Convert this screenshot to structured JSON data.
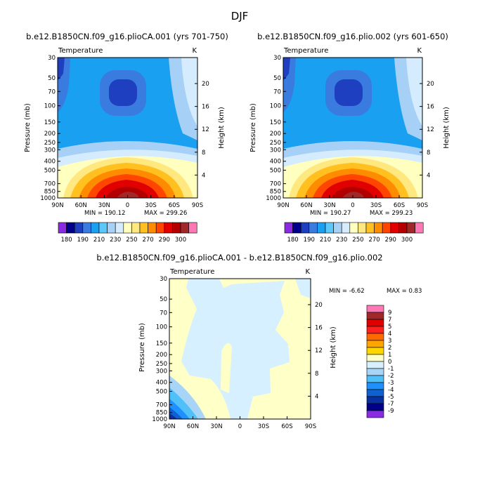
{
  "title": "DJF",
  "chart_data": [
    {
      "type": "heatmap",
      "title": "b.e12.B1850CN.f09_g16.plioCA.001 (yrs 701-750)",
      "left_label": "Temperature",
      "right_label": "K",
      "xlabel": "",
      "ylabel": "Pressure (mb)",
      "ylabel_right": "Height (km)",
      "x_ticks": [
        "90N",
        "60N",
        "30N",
        "0",
        "30S",
        "60S",
        "90S"
      ],
      "y_ticks": [
        "30",
        "50",
        "70",
        "100",
        "150",
        "200",
        "250",
        "300",
        "400",
        "500",
        "700",
        "850",
        "1000"
      ],
      "right_ticks": [
        "20",
        "16",
        "12",
        "8",
        "4"
      ],
      "min_label": "MIN = 190.12",
      "max_label": "MAX = 299.26",
      "colorbar_labels": [
        "180",
        "190",
        "210",
        "230",
        "250",
        "270",
        "290",
        "300"
      ]
    },
    {
      "type": "heatmap",
      "title": "b.e12.B1850CN.f09_g16.plio.002 (yrs 601-650)",
      "left_label": "Temperature",
      "right_label": "K",
      "xlabel": "",
      "ylabel": "Pressure (mb)",
      "ylabel_right": "Height (km)",
      "x_ticks": [
        "90N",
        "60N",
        "30N",
        "0",
        "30S",
        "60S",
        "90S"
      ],
      "y_ticks": [
        "30",
        "50",
        "70",
        "100",
        "150",
        "200",
        "250",
        "300",
        "400",
        "500",
        "700",
        "850",
        "1000"
      ],
      "right_ticks": [
        "20",
        "16",
        "12",
        "8",
        "4"
      ],
      "min_label": "MIN = 190.27",
      "max_label": "MAX = 299.23",
      "colorbar_labels": [
        "180",
        "190",
        "210",
        "230",
        "250",
        "270",
        "290",
        "300"
      ]
    },
    {
      "type": "heatmap",
      "title": "b.e12.B1850CN.f09_g16.plioCA.001 - b.e12.B1850CN.f09_g16.plio.002",
      "left_label": "Temperature",
      "right_label": "K",
      "xlabel": "",
      "ylabel": "Pressure (mb)",
      "ylabel_right": "Height (km)",
      "x_ticks": [
        "90N",
        "60N",
        "30N",
        "0",
        "30S",
        "60S",
        "90S"
      ],
      "y_ticks": [
        "30",
        "50",
        "70",
        "100",
        "150",
        "200",
        "250",
        "300",
        "400",
        "500",
        "700",
        "850",
        "1000"
      ],
      "right_ticks": [
        "20",
        "16",
        "12",
        "8",
        "4"
      ],
      "min_label": "MIN = -6.62",
      "max_label": "MAX = 0.83",
      "colorbar_labels": [
        "9",
        "7",
        "5",
        "4",
        "3",
        "2",
        "1",
        "0",
        "-1",
        "-2",
        "-3",
        "-4",
        "-5",
        "-7",
        "-9"
      ]
    }
  ],
  "colors": {
    "abs_palette": [
      "#8a2be2",
      "#00008b",
      "#1e3fbf",
      "#3a7be0",
      "#1aa0f0",
      "#5ac8fa",
      "#a7d0f7",
      "#d4ecfd",
      "#ffffbf",
      "#ffe880",
      "#ffc020",
      "#ff8c00",
      "#ff4500",
      "#e00000",
      "#b20000",
      "#a02828",
      "#ff77b4"
    ],
    "diff_palette": [
      "#ff77b4",
      "#a02828",
      "#e00000",
      "#ff2020",
      "#ff6a00",
      "#ffa500",
      "#ffd700",
      "#ffffc8",
      "#d6f0ff",
      "#a8d4f8",
      "#4fc0f8",
      "#1e90ff",
      "#1060d0",
      "#0a2fa0",
      "#00008b",
      "#8a2be2"
    ]
  }
}
